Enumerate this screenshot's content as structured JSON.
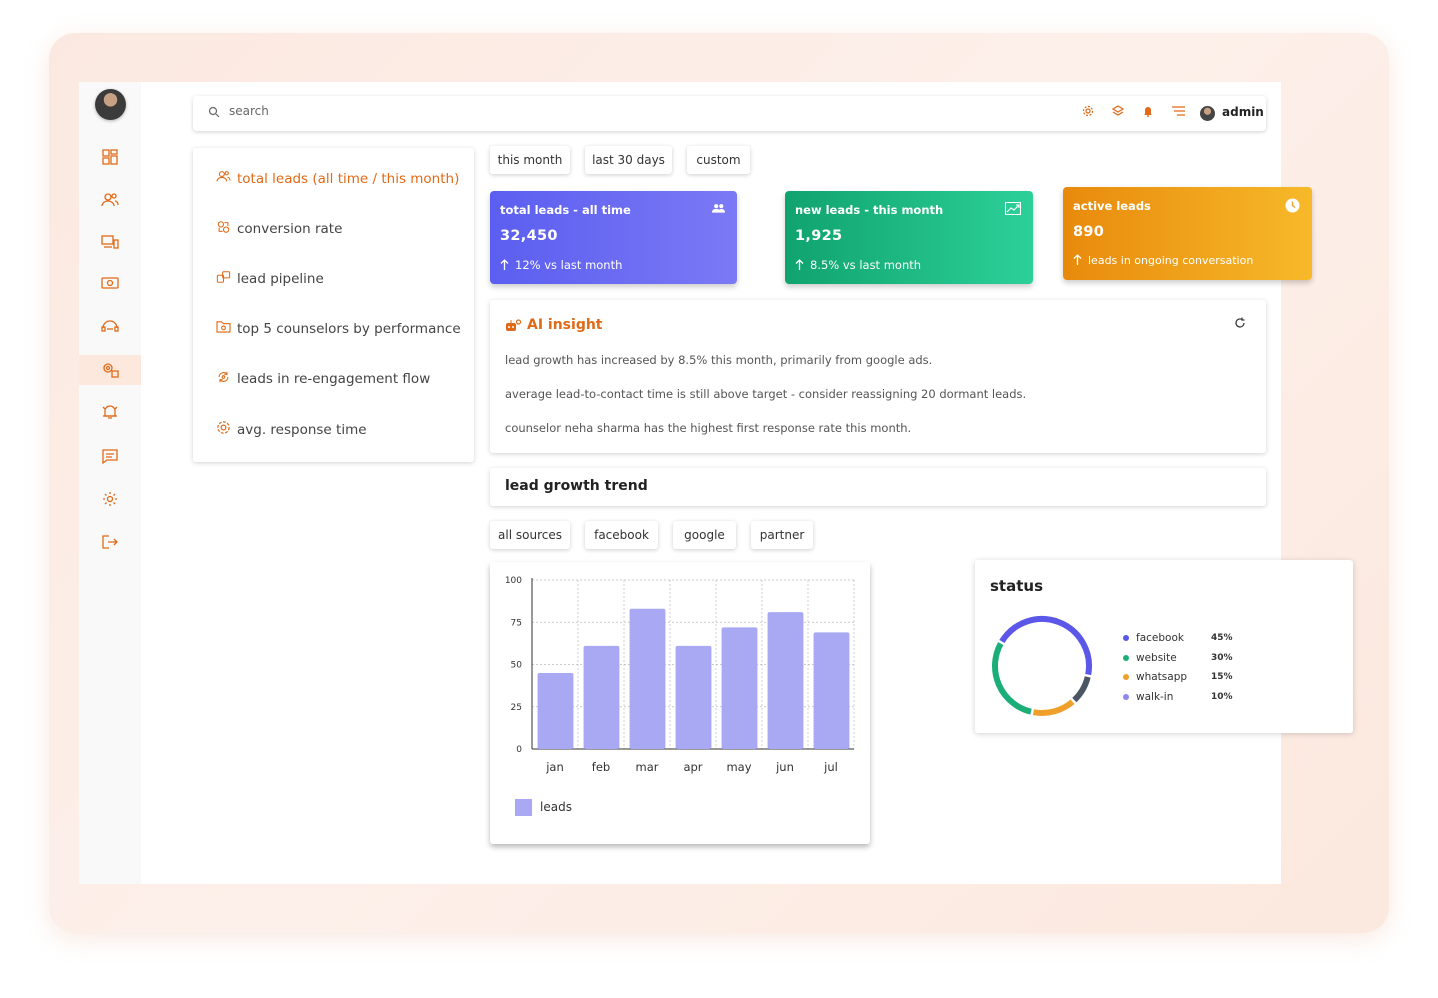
{
  "header": {
    "search_placeholder": "search",
    "user_label": "admin",
    "icons": [
      "settings-icon",
      "layers-icon",
      "bell-icon",
      "filter-icon"
    ]
  },
  "sidebar": {
    "items": [
      {
        "icon": "dashboard-icon",
        "active": false
      },
      {
        "icon": "users-icon",
        "active": false
      },
      {
        "icon": "devices-icon",
        "active": false
      },
      {
        "icon": "money-icon",
        "active": false
      },
      {
        "icon": "support-icon",
        "active": false
      },
      {
        "icon": "user-settings-icon",
        "active": true
      },
      {
        "icon": "alarm-icon",
        "active": false
      },
      {
        "icon": "message-icon",
        "active": false
      },
      {
        "icon": "gear-icon",
        "active": false
      },
      {
        "icon": "logout-icon",
        "active": false
      }
    ]
  },
  "menu": {
    "items": [
      {
        "label": "total leads (all time / this month)",
        "icon": "users-icon",
        "active": true
      },
      {
        "label": "conversion rate",
        "icon": "conversion-icon",
        "active": false
      },
      {
        "label": "lead pipeline",
        "icon": "pipeline-icon",
        "active": false
      },
      {
        "label": "top 5 counselors by performance",
        "icon": "folder-icon",
        "active": false
      },
      {
        "label": "leads in re-engagement flow",
        "icon": "cycle-icon",
        "active": false
      },
      {
        "label": "avg. response time",
        "icon": "gear-icon",
        "active": false
      }
    ]
  },
  "period_filters": [
    "this month",
    "last 30 days",
    "custom"
  ],
  "stats": [
    {
      "title": "total leads - all time",
      "value": "32,450",
      "sub": "12% vs last month",
      "icon": "group-icon",
      "color_from": "#5b5ef0",
      "color_to": "#7b79f5"
    },
    {
      "title": "new leads - this month",
      "value": "1,925",
      "sub": "8.5% vs last month",
      "icon": "trend-up-icon",
      "color_from": "#10a36e",
      "color_to": "#2dd099"
    },
    {
      "title": "active leads",
      "value": "890",
      "sub": "leads in ongoing conversation",
      "icon": "clock-icon",
      "color_from": "#e88a0c",
      "color_to": "#f7b92a"
    }
  ],
  "insight": {
    "title": "AI insight",
    "lines": [
      "lead growth has increased by 8.5% this month, primarily from google ads.",
      "average lead-to-contact time is still above target - consider reassigning 20 dormant leads.",
      "counselor neha sharma has the highest first response rate this month."
    ]
  },
  "trend": {
    "title": "lead growth trend",
    "source_filters": [
      "all sources",
      "facebook",
      "google",
      "partner"
    ]
  },
  "chart_data": {
    "type": "bar",
    "categories": [
      "jan",
      "feb",
      "mar",
      "apr",
      "may",
      "jun",
      "jul"
    ],
    "series": [
      {
        "name": "leads",
        "values": [
          45,
          61,
          83,
          61,
          72,
          81,
          69
        ],
        "color": "#a9a9f3"
      }
    ],
    "y_ticks": [
      0,
      25,
      50,
      75,
      100
    ],
    "ylim": [
      0,
      100
    ],
    "grid": true,
    "legend": "bottom-left"
  },
  "status": {
    "title": "status",
    "chart_data": {
      "type": "pie",
      "labels": [
        "facebook",
        "website",
        "whatsapp",
        "walk-in"
      ],
      "values": [
        45,
        30,
        15,
        10
      ],
      "display": [
        "45%",
        "30%",
        "15%",
        "10%"
      ],
      "colors": [
        "#5b57e8",
        "#1cae78",
        "#f0a02a",
        "#4b5563"
      ]
    }
  }
}
